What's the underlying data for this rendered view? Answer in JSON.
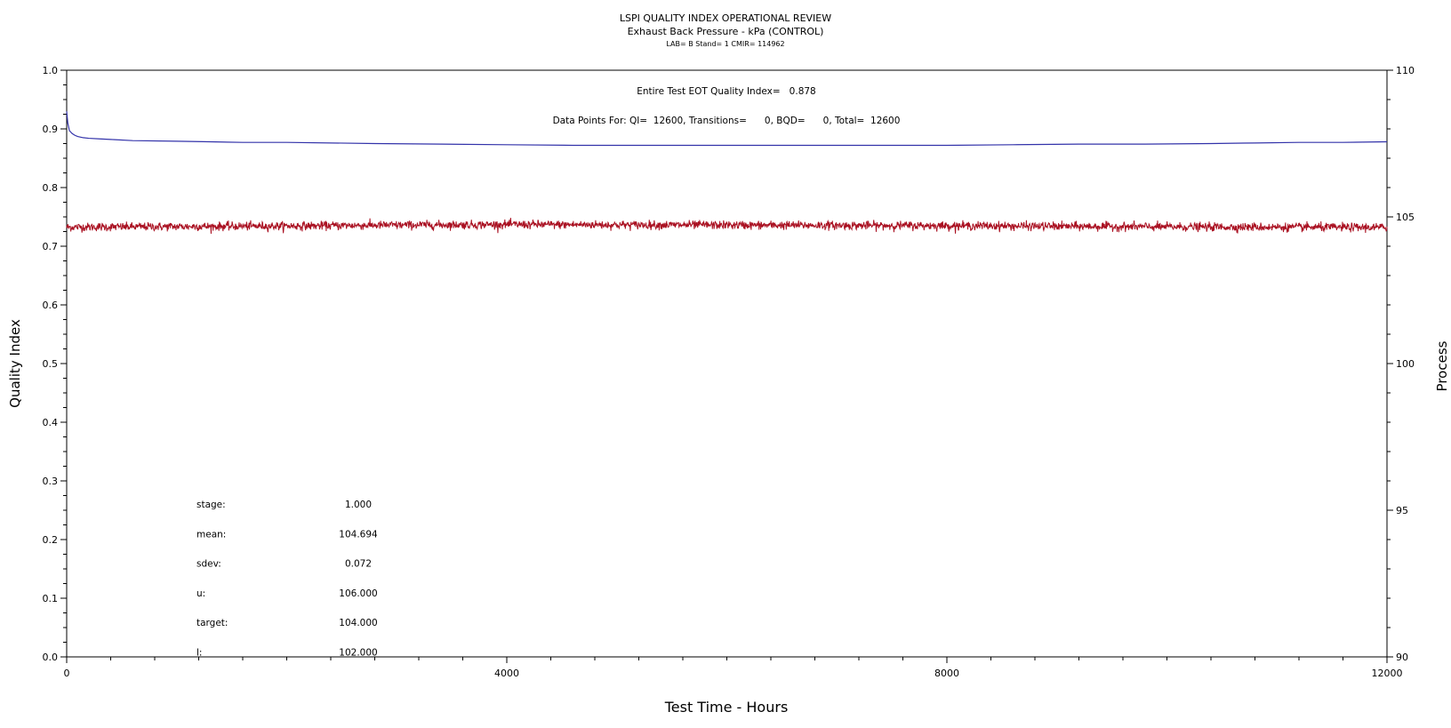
{
  "chart_data": {
    "type": "line",
    "title": "LSPI QUALITY INDEX OPERATIONAL REVIEW",
    "subtitle": "Exhaust Back Pressure - kPa (CONTROL)",
    "subsubtitle": "LAB= B Stand= 1 CMIR= 114962",
    "xlabel": "Test Time - Hours",
    "ylabel_left": "Quality Index",
    "ylabel_right": "Process",
    "xlim": [
      0,
      12000
    ],
    "ylim_left": [
      0.0,
      1.0
    ],
    "ylim_right": [
      90,
      110
    ],
    "x_ticks": [
      "0",
      "4000",
      "8000",
      "12000"
    ],
    "y_ticks_left": [
      "0.0",
      "0.1",
      "0.2",
      "0.3",
      "0.4",
      "0.5",
      "0.6",
      "0.7",
      "0.8",
      "0.9",
      "1.0"
    ],
    "y_ticks_right": [
      "90",
      "95",
      "100",
      "105",
      "110"
    ],
    "grid": false,
    "annotations": {
      "eot_quality_index": "Entire Test EOT Quality Index=   0.878",
      "data_points": "Data Points For: QI=  12600, Transitions=      0, BQD=      0, Total=  12600"
    },
    "stats_table": [
      {
        "label": "stage:",
        "value": "1.000"
      },
      {
        "label": "mean:",
        "value": "104.694"
      },
      {
        "label": "sdev:",
        "value": "0.072"
      },
      {
        "label": "u:",
        "value": "106.000"
      },
      {
        "label": "target:",
        "value": "104.000"
      },
      {
        "label": "l:",
        "value": "102.000"
      }
    ],
    "series": [
      {
        "axis": "left",
        "color": "#3333aa",
        "x": [
          0,
          10,
          25,
          50,
          75,
          100,
          150,
          200,
          300,
          400,
          600,
          1000,
          1300,
          1600,
          2000,
          2800,
          3400,
          4000,
          4600,
          5200,
          6000,
          7000,
          8000,
          8600,
          9200,
          9800,
          10400,
          10800,
          11200,
          11600,
          12000
        ],
        "values": [
          0.93,
          0.91,
          0.897,
          0.892,
          0.889,
          0.887,
          0.885,
          0.884,
          0.883,
          0.882,
          0.88,
          0.879,
          0.878,
          0.877,
          0.877,
          0.875,
          0.874,
          0.873,
          0.872,
          0.872,
          0.872,
          0.872,
          0.872,
          0.873,
          0.874,
          0.874,
          0.875,
          0.876,
          0.877,
          0.877,
          0.878
        ]
      },
      {
        "axis": "right",
        "color": "#aa1122",
        "x": [
          0,
          1000,
          2000,
          3000,
          4000,
          5000,
          6000,
          7000,
          8000,
          9000,
          10000,
          11000,
          12000
        ],
        "values": [
          104.65,
          104.67,
          104.69,
          104.72,
          104.74,
          104.73,
          104.72,
          104.71,
          104.7,
          104.68,
          104.66,
          104.65,
          104.64
        ],
        "noise_sdev": 0.072,
        "points": 12600
      }
    ]
  }
}
